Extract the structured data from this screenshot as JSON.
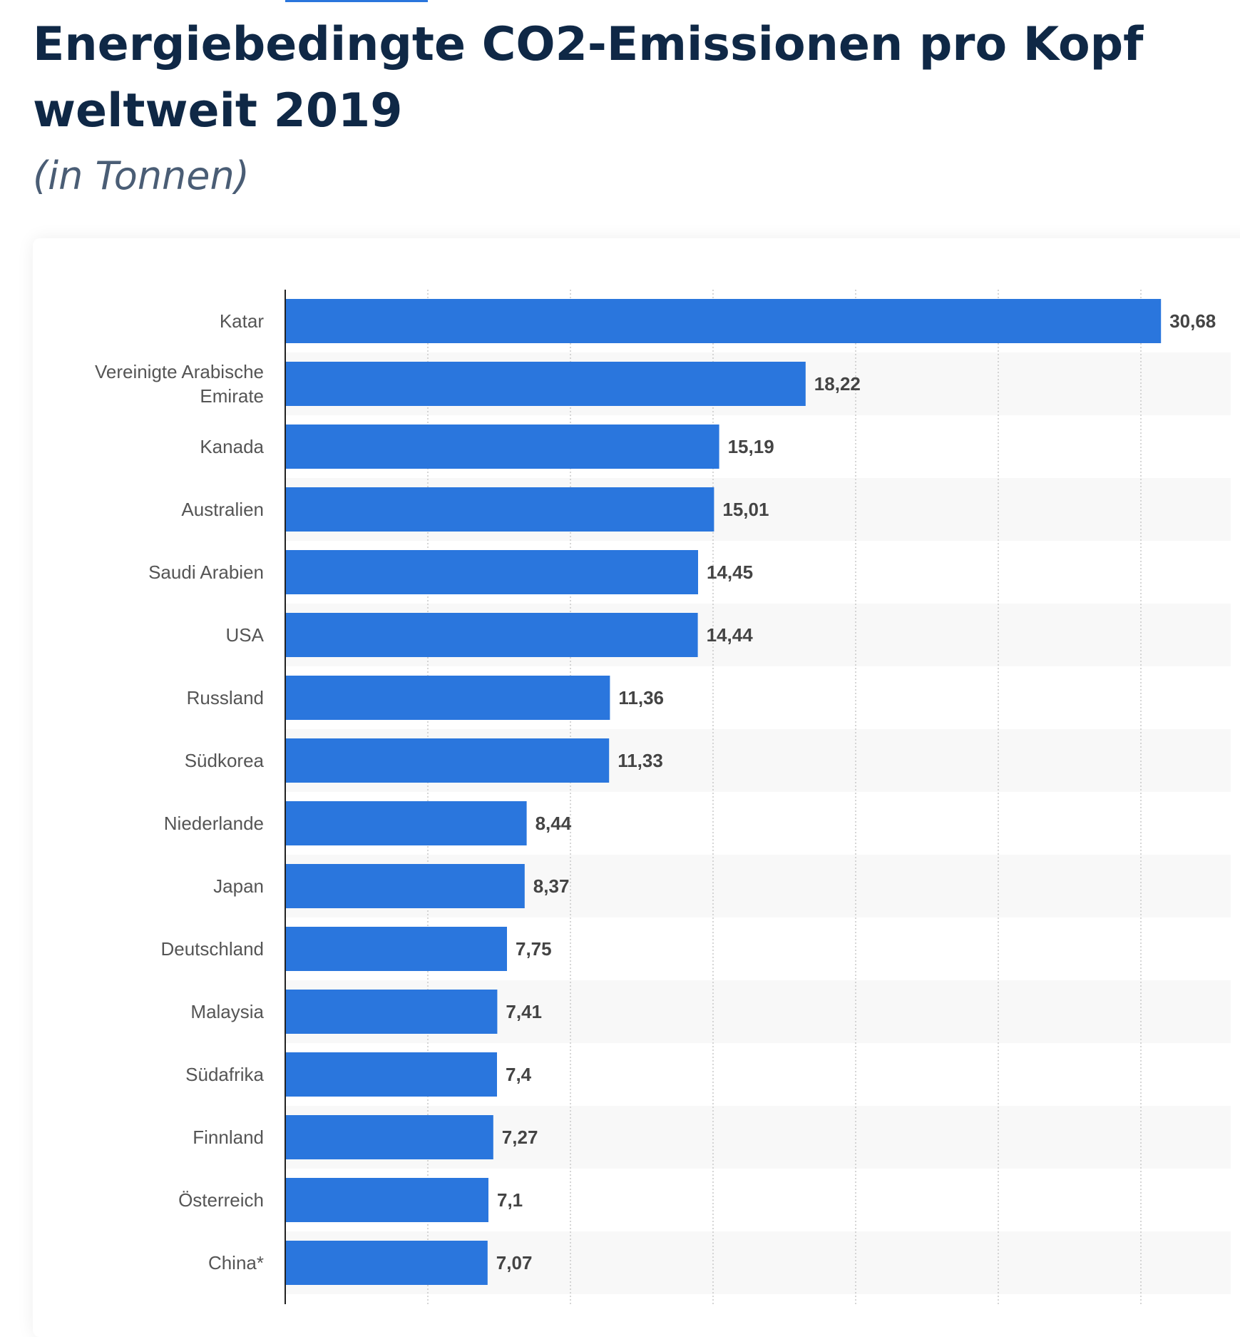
{
  "header": {
    "title": "Energiebedingte CO2-Emissionen pro Kopf weltweit 2019",
    "subtitle": "(in Tonnen)"
  },
  "colors": {
    "bar": "#2a76dd",
    "title": "#0f2846",
    "subtitle": "#4a5d75",
    "stripe": "#f8f8f8",
    "grid": "#c8c8c8",
    "axis": "#222222"
  },
  "chart_data": {
    "type": "bar",
    "orientation": "horizontal",
    "title": "Energiebedingte CO2-Emissionen pro Kopf weltweit 2019",
    "subtitle": "(in Tonnen)",
    "xlabel": "",
    "ylabel": "",
    "xlim": [
      0,
      33
    ],
    "grid": true,
    "categories": [
      [
        "Katar"
      ],
      [
        "Vereinigte Arabische",
        "Emirate"
      ],
      [
        "Kanada"
      ],
      [
        "Australien"
      ],
      [
        "Saudi Arabien"
      ],
      [
        "USA"
      ],
      [
        "Russland"
      ],
      [
        "Südkorea"
      ],
      [
        "Niederlande"
      ],
      [
        "Japan"
      ],
      [
        "Deutschland"
      ],
      [
        "Malaysia"
      ],
      [
        "Südafrika"
      ],
      [
        "Finnland"
      ],
      [
        "Österreich"
      ],
      [
        "China*"
      ]
    ],
    "values": [
      30.68,
      18.22,
      15.19,
      15.01,
      14.45,
      14.44,
      11.36,
      11.33,
      8.44,
      8.37,
      7.75,
      7.41,
      7.4,
      7.27,
      7.1,
      7.07
    ],
    "value_labels": [
      "30,68",
      "18,22",
      "15,19",
      "15,01",
      "14,45",
      "14,44",
      "11,36",
      "11,33",
      "8,44",
      "8,37",
      "7,75",
      "7,41",
      "7,4",
      "7,27",
      "7,1",
      "7,07"
    ]
  }
}
